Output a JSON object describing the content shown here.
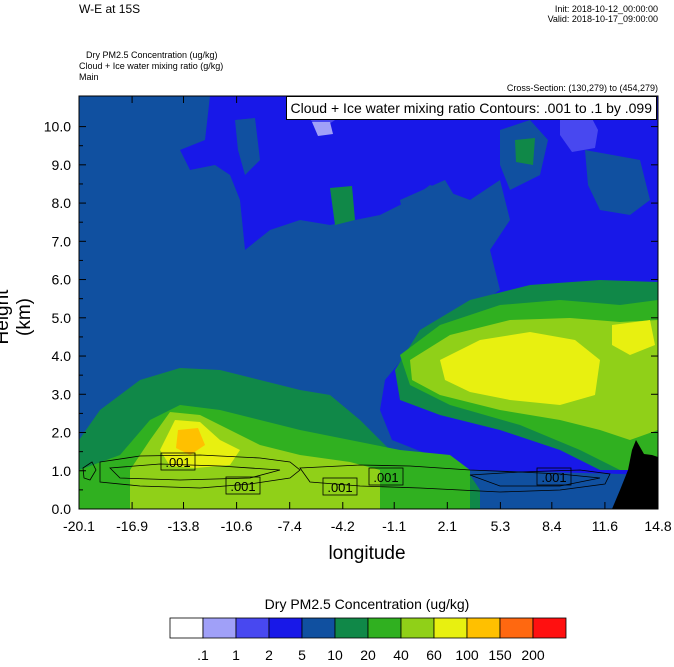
{
  "header": {
    "title": "W-E at 15S",
    "init": "Init: 2018-10-12_00:00:00",
    "valid": "Valid: 2018-10-17_09:00:00",
    "var1": "Dry PM2.5 Concentration   (ug/kg)",
    "var2": "Cloud + Ice water mixing ratio   (g/kg)",
    "var3": "Main",
    "cross_section": "Cross-Section: (130,279) to (454,279)",
    "contour_title": "Cloud + Ice water mixing ratio Contours: .001 to .1 by .099"
  },
  "chart_data": {
    "type": "heatmap",
    "xlabel": "longitude",
    "ylabel": "Height (km)",
    "x_ticks": [
      "-20.1",
      "-16.9",
      "-13.8",
      "-10.6",
      "-7.4",
      "-4.2",
      "-1.1",
      "2.1",
      "5.3",
      "8.4",
      "11.6",
      "14.8"
    ],
    "y_ticks": [
      "0.0",
      "1.0",
      "2.0",
      "3.0",
      "4.0",
      "5.0",
      "6.0",
      "7.0",
      "8.0",
      "9.0",
      "10.0"
    ],
    "xlim": [
      -20.1,
      14.8
    ],
    "ylim": [
      0,
      10.8
    ],
    "colorbar": {
      "title": "Dry PM2.5 Concentration  (ug/kg)",
      "labels": [
        ".1",
        "1",
        "2",
        "5",
        "10",
        "20",
        "40",
        "60",
        "100",
        "150",
        "200"
      ],
      "colors": [
        "#ffffff",
        "#a0a0f8",
        "#4848f0",
        "#1818e8",
        "#1050a0",
        "#108848",
        "#30b020",
        "#90d018",
        "#e8f010",
        "#ffc000",
        "#ff6810",
        "#ff1010"
      ]
    },
    "contour_labels": [
      ".001",
      ".001",
      ".001",
      ".001",
      ".001"
    ],
    "terrain_color": "#000000"
  }
}
